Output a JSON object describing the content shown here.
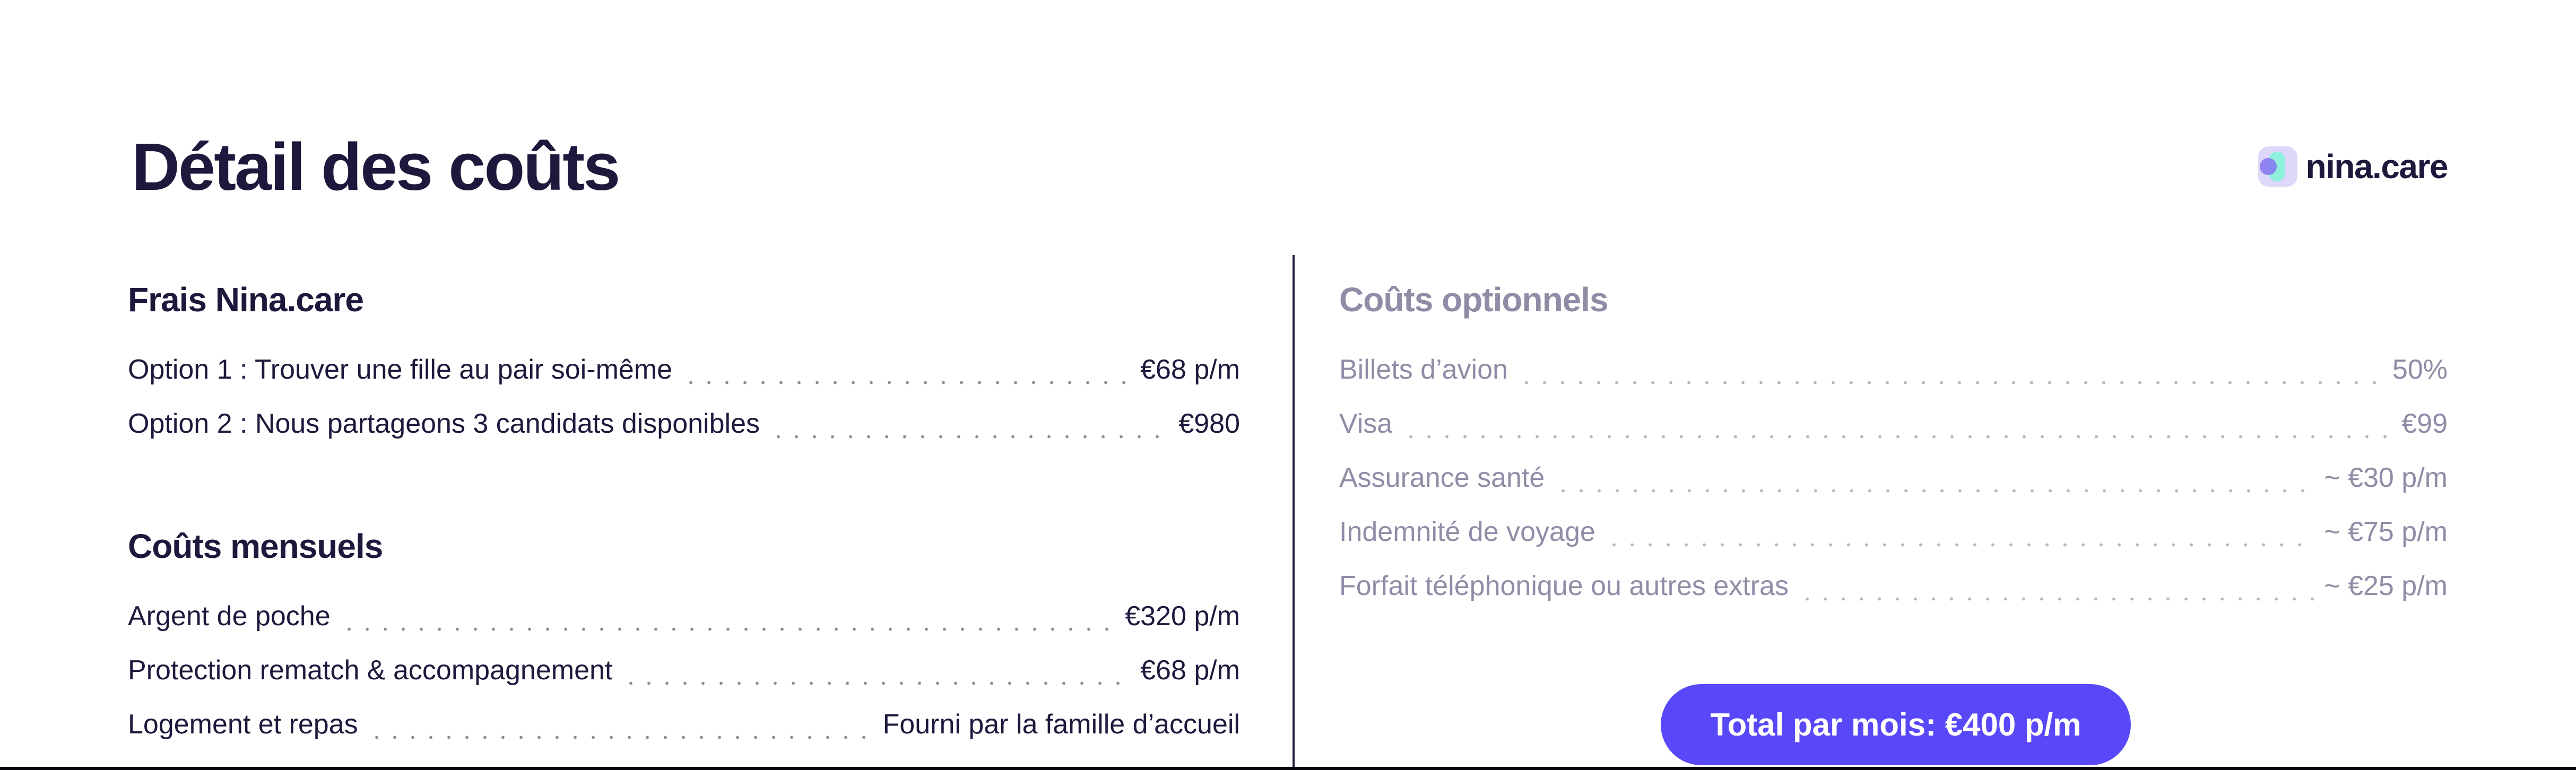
{
  "title": "Détail des coûts",
  "brand": {
    "name": "nina.care"
  },
  "left": {
    "sections": [
      {
        "heading": "Frais Nina.care",
        "rows": [
          {
            "label": "Option 1 : Trouver une fille au pair soi-même",
            "value": "€68 p/m"
          },
          {
            "label": "Option 2 : Nous partageons 3 candidats disponibles",
            "value": "€980"
          }
        ]
      },
      {
        "heading": "Coûts mensuels",
        "rows": [
          {
            "label": "Argent de poche",
            "value": "€320 p/m"
          },
          {
            "label": "Protection rematch & accompagnement",
            "value": "€68 p/m"
          },
          {
            "label": "Logement et repas",
            "value": "Fourni par la famille d’accueil"
          }
        ]
      }
    ]
  },
  "right": {
    "heading": "Coûts optionnels",
    "rows": [
      {
        "label": "Billets d’avion",
        "value": "50%"
      },
      {
        "label": "Visa",
        "value": "€99"
      },
      {
        "label": "Assurance santé",
        "value": "~ €30 p/m"
      },
      {
        "label": "Indemnité de voyage",
        "value": "~ €75 p/m"
      },
      {
        "label": "Forfait téléphonique ou autres extras",
        "value": "~ €25 p/m"
      }
    ],
    "total_button_label": "Total par mois: €400 p/m"
  },
  "colors": {
    "dark_navy": "#1E193C",
    "muted_gray": "#8F8DA6",
    "accent_purple": "#5948F7",
    "logo_lavender": "#DDD8F9",
    "logo_teal": "#8FF0DC",
    "logo_circle_purple": "#8374F0",
    "bottom_bar_black": "#06060A"
  }
}
